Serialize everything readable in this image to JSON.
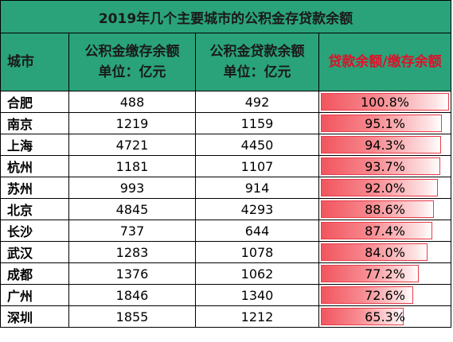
{
  "title": "2019年几个主要城市的公积金存贷款余额",
  "headers": {
    "city": "城市",
    "deposit_line1": "公积金缴存余额",
    "deposit_line2": "单位：亿元",
    "loan_line1": "公积金贷款余额",
    "loan_line2": "单位：亿元",
    "ratio": "贷款余额/缴存余额"
  },
  "rows": [
    {
      "city": "合肥",
      "deposit": "488",
      "loan": "492",
      "ratio": "100.8%",
      "ratio_value": 1.008
    },
    {
      "city": "南京",
      "deposit": "1219",
      "loan": "1159",
      "ratio": "95.1%",
      "ratio_value": 0.951
    },
    {
      "city": "上海",
      "deposit": "4721",
      "loan": "4450",
      "ratio": "94.3%",
      "ratio_value": 0.943
    },
    {
      "city": "杭州",
      "deposit": "1181",
      "loan": "1107",
      "ratio": "93.7%",
      "ratio_value": 0.937
    },
    {
      "city": "苏州",
      "deposit": "993",
      "loan": "914",
      "ratio": "92.0%",
      "ratio_value": 0.92
    },
    {
      "city": "北京",
      "deposit": "4845",
      "loan": "4293",
      "ratio": "88.6%",
      "ratio_value": 0.886
    },
    {
      "city": "长沙",
      "deposit": "737",
      "loan": "644",
      "ratio": "87.4%",
      "ratio_value": 0.874
    },
    {
      "city": "武汉",
      "deposit": "1283",
      "loan": "1078",
      "ratio": "84.0%",
      "ratio_value": 0.84
    },
    {
      "city": "成都",
      "deposit": "1376",
      "loan": "1062",
      "ratio": "77.2%",
      "ratio_value": 0.772
    },
    {
      "city": "广州",
      "deposit": "1846",
      "loan": "1340",
      "ratio": "72.6%",
      "ratio_value": 0.726
    },
    {
      "city": "深圳",
      "deposit": "1855",
      "loan": "1212",
      "ratio": "65.3%",
      "ratio_value": 0.653
    }
  ],
  "colors": {
    "header_bg": "#2aa37a",
    "ratio_header_text": "#e0102a",
    "bar_fill": "#f2555e",
    "border": "#000000"
  }
}
